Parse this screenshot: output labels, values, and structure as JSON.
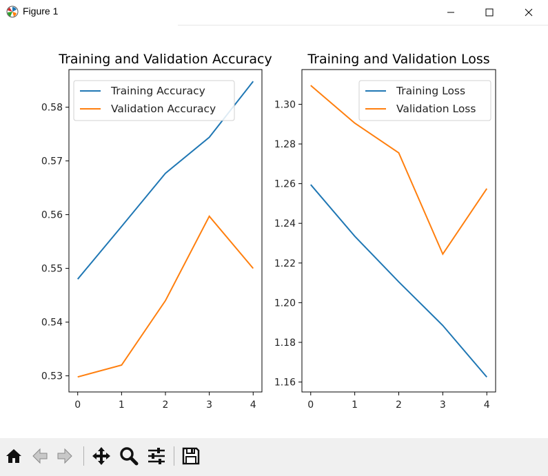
{
  "window": {
    "title": "Figure 1"
  },
  "toolbar": {
    "buttons": [
      "home-icon",
      "back-arrow-icon",
      "forward-arrow-icon",
      "pan-icon",
      "zoom-icon",
      "configure-subplots-icon",
      "save-icon"
    ]
  },
  "colors": {
    "series1": "#1f77b4",
    "series2": "#ff7f0e"
  },
  "chart_data": [
    {
      "type": "line",
      "title": "Training and Validation Accuracy",
      "xlabel": "",
      "ylabel": "",
      "x": [
        0,
        1,
        2,
        3,
        4
      ],
      "xticks": [
        "0",
        "1",
        "2",
        "3",
        "4"
      ],
      "xlim": [
        -0.2,
        4.2
      ],
      "yticks": [
        "0.53",
        "0.54",
        "0.55",
        "0.56",
        "0.57",
        "0.58"
      ],
      "ylim": [
        0.527,
        0.587
      ],
      "legend_position": "top-left",
      "grid": false,
      "series": [
        {
          "name": "Training Accuracy",
          "values": [
            0.548,
            0.5578,
            0.5677,
            0.5744,
            0.5848
          ]
        },
        {
          "name": "Validation Accuracy",
          "values": [
            0.5298,
            0.532,
            0.544,
            0.5597,
            0.55
          ]
        }
      ]
    },
    {
      "type": "line",
      "title": "Training and Validation Loss",
      "xlabel": "",
      "ylabel": "",
      "x": [
        0,
        1,
        2,
        3,
        4
      ],
      "xticks": [
        "0",
        "1",
        "2",
        "3",
        "4"
      ],
      "xlim": [
        -0.2,
        4.2
      ],
      "yticks": [
        "1.16",
        "1.18",
        "1.20",
        "1.22",
        "1.24",
        "1.26",
        "1.28",
        "1.30"
      ],
      "ylim": [
        1.155,
        1.3175
      ],
      "legend_position": "top-right",
      "grid": false,
      "series": [
        {
          "name": "Training Loss",
          "values": [
            1.2595,
            1.2335,
            1.2105,
            1.1885,
            1.1625
          ]
        },
        {
          "name": "Validation Loss",
          "values": [
            1.3095,
            1.2905,
            1.2755,
            1.2245,
            1.2575
          ]
        }
      ]
    }
  ]
}
